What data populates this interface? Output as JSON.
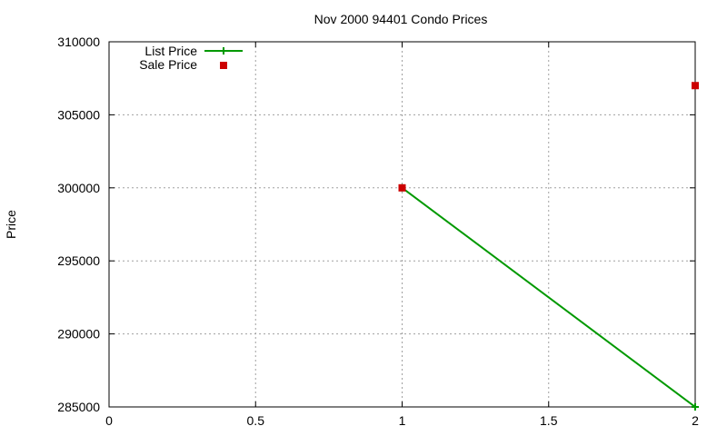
{
  "chart_data": {
    "type": "line",
    "title": "Nov 2000 94401 Condo Prices",
    "xlabel": "",
    "ylabel": "Price",
    "xlim": [
      0,
      2
    ],
    "ylim": [
      285000,
      310000
    ],
    "x_ticks": [
      "0",
      "0.5",
      "1",
      "1.5",
      "2"
    ],
    "y_ticks": [
      "285000",
      "290000",
      "295000",
      "300000",
      "305000",
      "310000"
    ],
    "grid": true,
    "legend_position": "top-left",
    "series": [
      {
        "name": "List Price",
        "style": "line+points",
        "color": "#009900",
        "x": [
          1,
          2
        ],
        "values": [
          300000,
          285000
        ]
      },
      {
        "name": "Sale Price",
        "style": "points",
        "color": "#cc0000",
        "x": [
          1,
          2
        ],
        "values": [
          300000,
          307000
        ]
      }
    ]
  }
}
